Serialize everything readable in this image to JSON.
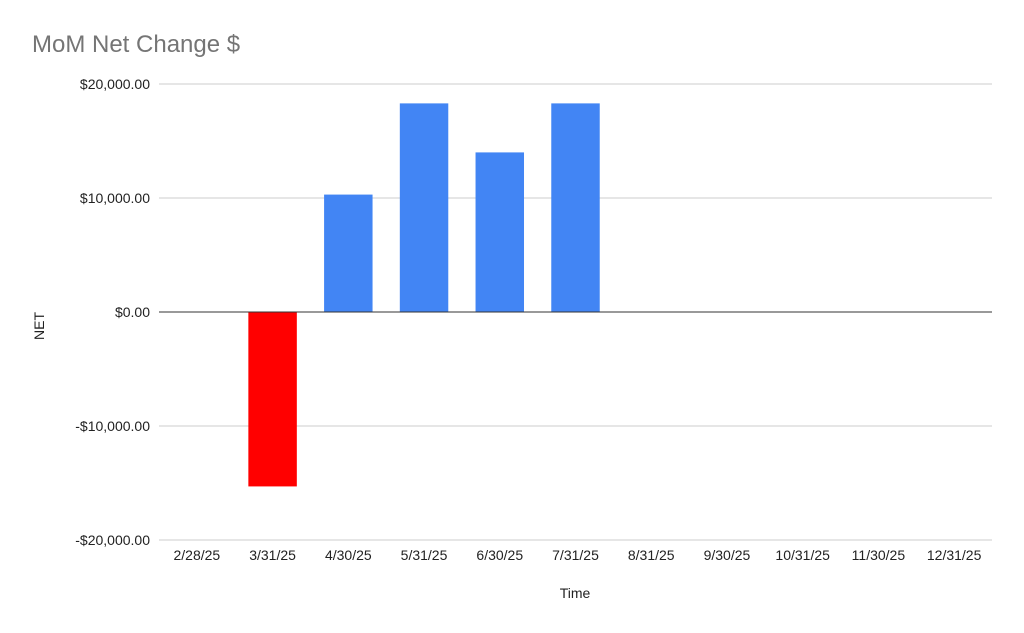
{
  "chart_data": {
    "type": "bar",
    "title": "MoM Net Change $",
    "xlabel": "Time",
    "ylabel": "NET",
    "categories": [
      "2/28/25",
      "3/31/25",
      "4/30/25",
      "5/31/25",
      "6/30/25",
      "7/31/25",
      "8/31/25",
      "9/30/25",
      "10/31/25",
      "11/30/25",
      "12/31/25"
    ],
    "values": [
      0,
      -15300,
      10300,
      18300,
      14000,
      18300,
      0,
      0,
      0,
      0,
      0
    ],
    "ylim": [
      -20000,
      20000
    ],
    "yticks": [
      {
        "value": 20000,
        "label": "$20,000.00"
      },
      {
        "value": 10000,
        "label": "$10,000.00"
      },
      {
        "value": 0,
        "label": "$0.00"
      },
      {
        "value": -10000,
        "label": "-$10,000.00"
      },
      {
        "value": -20000,
        "label": "-$20,000.00"
      }
    ],
    "grid": true,
    "legend": "none",
    "colors": {
      "positive": "#4285f4",
      "negative": "#ff0000",
      "title": "#757575",
      "text": "#222222",
      "grid": "#cccccc",
      "zero_line": "#333333"
    }
  }
}
